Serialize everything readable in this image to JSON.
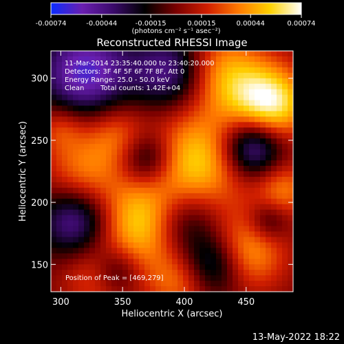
{
  "colorbar": {
    "stops": [
      "#0a2cff",
      "#6a1fb0",
      "#3a0a6a",
      "#000000",
      "#7a0000",
      "#d11f00",
      "#ff7a00",
      "#ffd200",
      "#ffffff"
    ],
    "tick_labels": [
      "-0.00074",
      "-0.00044",
      "-0.00015",
      "0.00015",
      "0.00044",
      "0.00074"
    ],
    "unit": "(photons cm⁻² s⁻¹ asec⁻²)"
  },
  "chart_data": {
    "type": "heatmap",
    "title": "Reconstructed RHESSI Image",
    "xlabel": "Heliocentric X (arcsec)",
    "ylabel": "Heliocentric Y (arcsec)",
    "xlim": [
      292,
      488
    ],
    "ylim": [
      128,
      322
    ],
    "xticks": [
      300,
      350,
      400,
      450
    ],
    "yticks": [
      150,
      200,
      250,
      300
    ],
    "clim": [
      -0.00074,
      0.00074
    ],
    "peak": [
      469,
      279
    ],
    "grid": false,
    "blobs": [
      {
        "x": 372,
        "y": 183,
        "amp": 0.00074,
        "w": 26
      },
      {
        "x": 410,
        "y": 232,
        "amp": 0.00058,
        "w": 30
      },
      {
        "x": 469,
        "y": 279,
        "amp": 0.00072,
        "w": 22
      },
      {
        "x": 430,
        "y": 305,
        "amp": 0.00045,
        "w": 24
      },
      {
        "x": 450,
        "y": 160,
        "amp": 0.00048,
        "w": 22
      },
      {
        "x": 318,
        "y": 225,
        "amp": 0.00035,
        "w": 22
      },
      {
        "x": 345,
        "y": 255,
        "amp": 0.0003,
        "w": 18
      },
      {
        "x": 330,
        "y": 140,
        "amp": 0.00028,
        "w": 20
      },
      {
        "x": 395,
        "y": 135,
        "amp": 0.0003,
        "w": 18
      },
      {
        "x": 300,
        "y": 260,
        "amp": 0.00025,
        "w": 14
      },
      {
        "x": 480,
        "y": 210,
        "amp": 0.00035,
        "w": 16
      },
      {
        "x": 320,
        "y": 305,
        "amp": -0.00062,
        "w": 26
      },
      {
        "x": 390,
        "y": 305,
        "amp": -0.0005,
        "w": 22
      },
      {
        "x": 455,
        "y": 245,
        "amp": -0.00068,
        "w": 18
      },
      {
        "x": 395,
        "y": 185,
        "amp": -0.0006,
        "w": 22
      },
      {
        "x": 370,
        "y": 235,
        "amp": -0.00045,
        "w": 16
      },
      {
        "x": 312,
        "y": 185,
        "amp": -0.0005,
        "w": 20
      },
      {
        "x": 425,
        "y": 150,
        "amp": -0.00045,
        "w": 18
      },
      {
        "x": 345,
        "y": 145,
        "amp": -0.00035,
        "w": 14
      },
      {
        "x": 468,
        "y": 185,
        "amp": -0.0003,
        "w": 12
      }
    ]
  },
  "annotations": {
    "time_range": "11-Mar-2014 23:35:40.000 to 23:40:20.000",
    "detectors": "Detectors: 3F 4F 5F 6F 7F 8F, Att 0",
    "energy": "Energy Range: 25.0 - 50.0 keV",
    "method": "Clean",
    "total_counts": "Total counts: 1.42E+04",
    "peak_text": "Position of Peak = [469,279]"
  },
  "footer_date": "13-May-2022 18:22"
}
